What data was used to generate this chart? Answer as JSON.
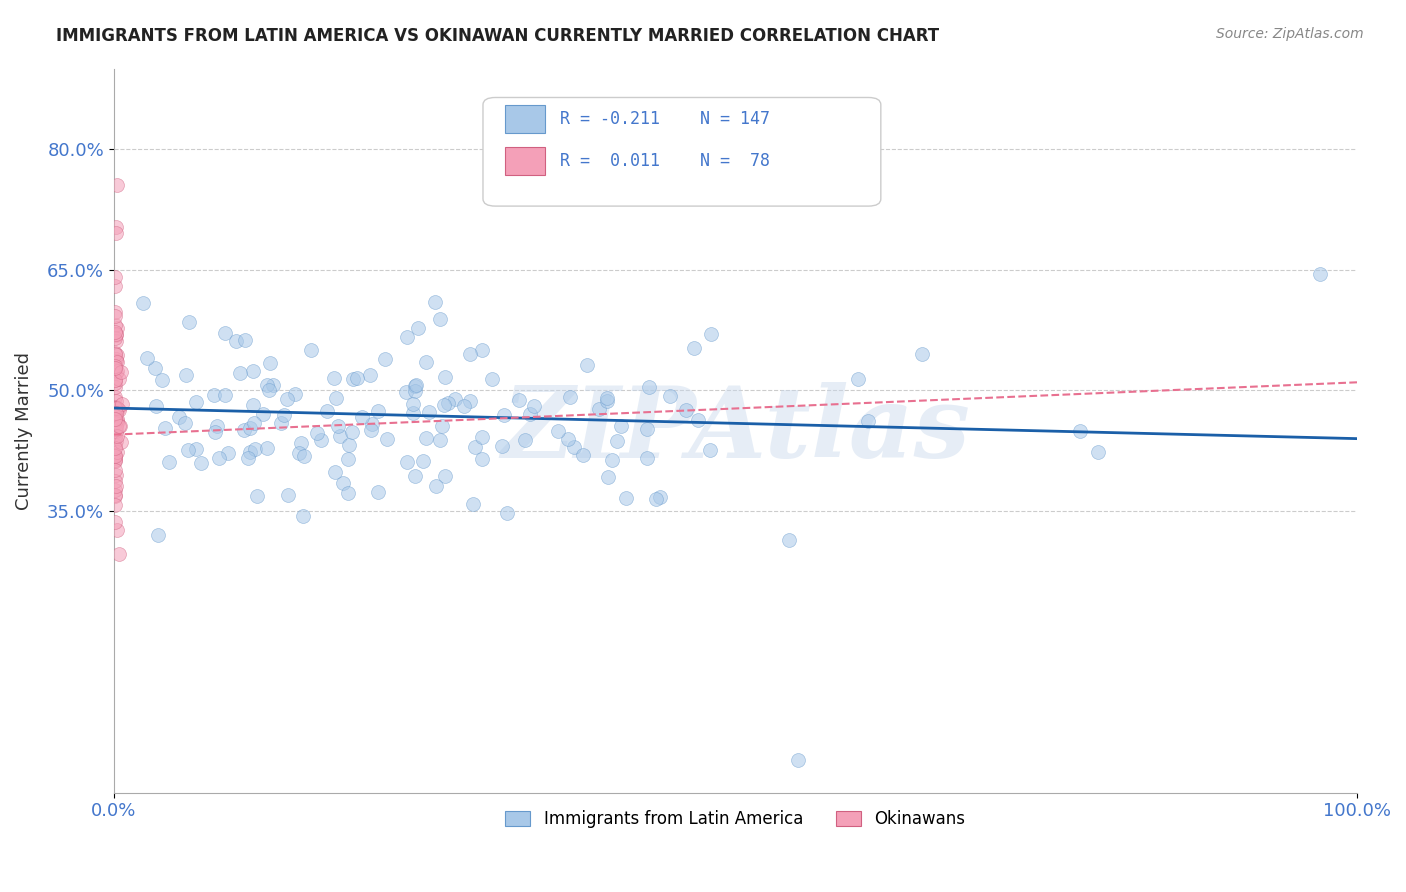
{
  "title": "IMMIGRANTS FROM LATIN AMERICA VS OKINAWAN CURRENTLY MARRIED CORRELATION CHART",
  "source": "Source: ZipAtlas.com",
  "ylabel": "Currently Married",
  "xlim": [
    0.0,
    1.0
  ],
  "ylim": [
    0.0,
    0.9
  ],
  "yticks": [
    0.35,
    0.5,
    0.65,
    0.8
  ],
  "ytick_labels": [
    "35.0%",
    "50.0%",
    "65.0%",
    "80.0%"
  ],
  "legend_entries": [
    {
      "label": "Immigrants from Latin America",
      "color": "#a8c8e8",
      "edge_color": "#6699cc",
      "R": "-0.211",
      "N": "147"
    },
    {
      "label": "Okinawans",
      "color": "#f4a0b8",
      "edge_color": "#d06080",
      "R": " 0.011",
      "N": " 78"
    }
  ],
  "blue_line_y_start": 0.478,
  "blue_line_y_end": 0.44,
  "pink_line_y_start": 0.445,
  "pink_line_y_end": 0.51,
  "scatter_size": 100,
  "scatter_alpha": 0.55,
  "blue_color": "#a8c8e8",
  "blue_edge_color": "#6699cc",
  "pink_color": "#f4a0b8",
  "pink_edge_color": "#d06080",
  "blue_line_color": "#1a5fa8",
  "pink_line_color": "#e87090",
  "watermark": "ZIPAtlas",
  "grid_color": "#cccccc",
  "tick_label_color": "#4477cc",
  "title_color": "#222222",
  "source_color": "#888888"
}
